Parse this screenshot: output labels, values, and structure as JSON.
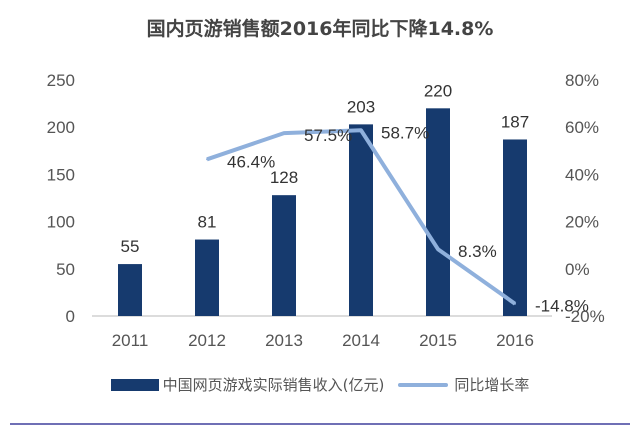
{
  "chart_data": {
    "type": "bar+line",
    "title": "国内页游销售额2016年同比下降14.8%",
    "categories": [
      "2011",
      "2012",
      "2013",
      "2014",
      "2015",
      "2016"
    ],
    "series": [
      {
        "name": "中国网页游戏实际销售收入(亿元)",
        "type": "bar",
        "axis": "left",
        "values": [
          55,
          81,
          128,
          203,
          220,
          187
        ],
        "labels": [
          "55",
          "81",
          "128",
          "203",
          "220",
          "187"
        ],
        "color": "#163a6e"
      },
      {
        "name": "同比增长率",
        "type": "line",
        "axis": "right",
        "values": [
          null,
          46.4,
          57.5,
          58.7,
          8.3,
          -14.8
        ],
        "labels": [
          "",
          "46.4%",
          "57.5%",
          "58.7%",
          "8.3%",
          "-14.8%"
        ],
        "color": "#8fb0dc"
      }
    ],
    "left_axis": {
      "ylim": [
        0,
        250
      ],
      "ticks": [
        "0",
        "50",
        "100",
        "150",
        "200",
        "250"
      ]
    },
    "right_axis": {
      "ylim": [
        -20,
        80
      ],
      "ticks": [
        "-20%",
        "0%",
        "20%",
        "40%",
        "60%",
        "80%"
      ]
    },
    "grid": false,
    "legend": "bottom"
  },
  "separator_color": "#6f6fb5"
}
